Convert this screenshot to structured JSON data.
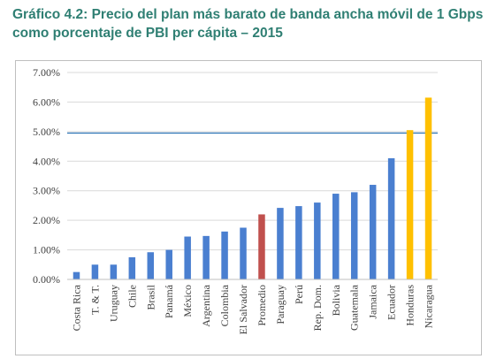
{
  "title": "Gráfico 4.2: Precio del plan más barato de banda ancha móvil de 1 Gbps como porcentaje de PBI per cápita – 2015",
  "colors": {
    "default_bar": "#4a7fd0",
    "promedio_bar": "#c0504d",
    "highlight_bar": "#ffc000",
    "reference_line": "#2e75b6",
    "grid": "#d9d9d9",
    "title": "#2f7f73"
  },
  "chart_data": {
    "type": "bar",
    "title": "Gráfico 4.2: Precio del plan más barato de banda ancha móvil de 1 Gbps como porcentaje de PBI per cápita – 2015",
    "xlabel": "",
    "ylabel": "",
    "ylim": [
      0,
      7
    ],
    "yticks": [
      0,
      1,
      2,
      3,
      4,
      5,
      6,
      7
    ],
    "ytick_labels": [
      "0.00%",
      "1.00%",
      "2.00%",
      "3.00%",
      "4.00%",
      "5.00%",
      "6.00%",
      "7.00%"
    ],
    "grid": true,
    "legend": "none",
    "reference_line": 4.95,
    "categories": [
      "Costa Rica",
      "T. & T.",
      "Uruguay",
      "Chile",
      "Brasil",
      "Panamá",
      "México",
      "Argentina",
      "Colombia",
      "El Salvador",
      "Promedio",
      "Paraguay",
      "Perú",
      "Rep. Dom.",
      "Bolivia",
      "Guatemala",
      "Jamaica",
      "Ecuador",
      "Honduras",
      "Nicaragua"
    ],
    "values": [
      0.25,
      0.5,
      0.5,
      0.75,
      0.92,
      1.0,
      1.45,
      1.47,
      1.62,
      1.75,
      2.2,
      2.42,
      2.48,
      2.6,
      2.9,
      2.95,
      3.2,
      4.1,
      5.05,
      6.15
    ],
    "bar_colors": [
      "#4a7fd0",
      "#4a7fd0",
      "#4a7fd0",
      "#4a7fd0",
      "#4a7fd0",
      "#4a7fd0",
      "#4a7fd0",
      "#4a7fd0",
      "#4a7fd0",
      "#4a7fd0",
      "#c0504d",
      "#4a7fd0",
      "#4a7fd0",
      "#4a7fd0",
      "#4a7fd0",
      "#4a7fd0",
      "#4a7fd0",
      "#4a7fd0",
      "#ffc000",
      "#ffc000"
    ]
  }
}
